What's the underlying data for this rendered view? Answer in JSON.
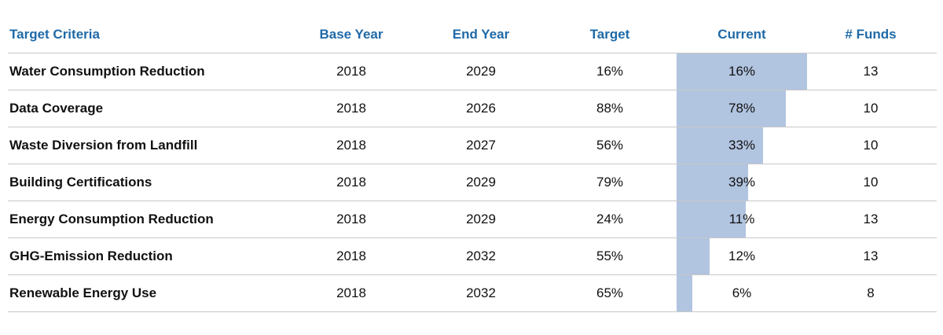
{
  "columns": {
    "criteria": "Target Criteria",
    "base_year": "Base Year",
    "end_year": "End Year",
    "target": "Target",
    "current": "Current",
    "funds": "# Funds"
  },
  "rows": [
    {
      "criteria": "Water Consumption Reduction",
      "base_year": "2018",
      "end_year": "2029",
      "target": "16%",
      "current": "16%",
      "funds": "13"
    },
    {
      "criteria": "Data Coverage",
      "base_year": "2018",
      "end_year": "2026",
      "target": "88%",
      "current": "78%",
      "funds": "10"
    },
    {
      "criteria": "Waste Diversion from Landfill",
      "base_year": "2018",
      "end_year": "2027",
      "target": "56%",
      "current": "33%",
      "funds": "10"
    },
    {
      "criteria": "Building Certifications",
      "base_year": "2018",
      "end_year": "2029",
      "target": "79%",
      "current": "39%",
      "funds": "10"
    },
    {
      "criteria": "Energy Consumption Reduction",
      "base_year": "2018",
      "end_year": "2029",
      "target": "24%",
      "current": "11%",
      "funds": "13"
    },
    {
      "criteria": "GHG-Emission Reduction",
      "base_year": "2018",
      "end_year": "2032",
      "target": "55%",
      "current": "12%",
      "funds": "13"
    },
    {
      "criteria": "Renewable Energy Use",
      "base_year": "2018",
      "end_year": "2032",
      "target": "65%",
      "current": "6%",
      "funds": "8"
    }
  ],
  "colors": {
    "header_text": "#1f6aa8",
    "current_bar": "#b1c4e0"
  },
  "chart_data": {
    "type": "table",
    "columns": [
      "Target Criteria",
      "Base Year",
      "End Year",
      "Target",
      "Current",
      "# Funds"
    ],
    "rows": [
      [
        "Water Consumption Reduction",
        2018,
        2029,
        "16%",
        "16%",
        13
      ],
      [
        "Data Coverage",
        2018,
        2026,
        "88%",
        "78%",
        10
      ],
      [
        "Waste Diversion from Landfill",
        2018,
        2027,
        "56%",
        "33%",
        10
      ],
      [
        "Building Certifications",
        2018,
        2029,
        "79%",
        "39%",
        10
      ],
      [
        "Energy Consumption Reduction",
        2018,
        2029,
        "24%",
        "11%",
        13
      ],
      [
        "GHG-Emission Reduction",
        2018,
        2032,
        "55%",
        "12%",
        13
      ],
      [
        "Renewable Energy Use",
        2018,
        2032,
        "65%",
        "6%",
        8
      ]
    ],
    "current_bar_values": [
      1.0,
      0.84,
      0.66,
      0.55,
      0.53,
      0.25,
      0.12
    ]
  }
}
